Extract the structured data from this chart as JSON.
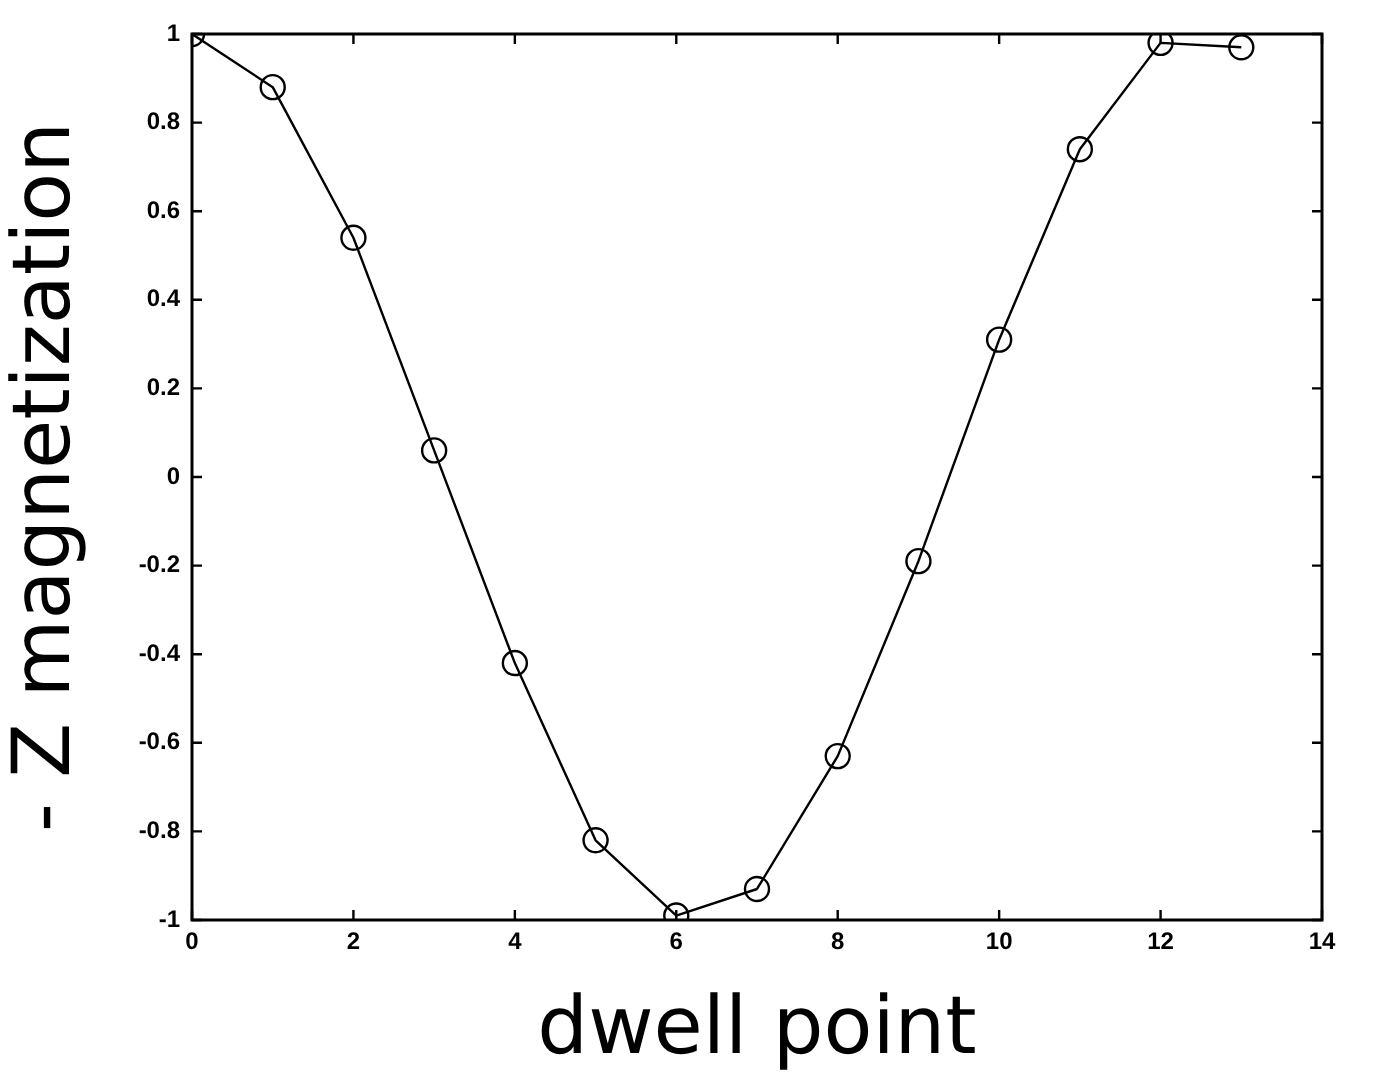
{
  "chart_data": {
    "type": "line",
    "xlabel": "dwell point",
    "ylabel": "- Z magnetization",
    "x": [
      0,
      1,
      2,
      3,
      4,
      5,
      6,
      7,
      8,
      9,
      10,
      11,
      12,
      13
    ],
    "series": [
      {
        "color": "#000000",
        "values": [
          1.0,
          0.88,
          0.54,
          0.06,
          -0.42,
          -0.82,
          -0.99,
          -0.93,
          -0.63,
          -0.19,
          0.31,
          0.74,
          0.98,
          0.97
        ]
      }
    ],
    "xlim": [
      0,
      14
    ],
    "xticks": [
      0,
      2,
      4,
      6,
      8,
      10,
      12,
      14
    ],
    "ylim": [
      -1,
      1
    ],
    "yticks": [
      -1,
      -0.8,
      -0.6,
      -0.4,
      -0.2,
      0,
      0.2,
      0.4,
      0.6,
      0.8,
      1
    ],
    "grid": false,
    "legend": false,
    "marker": "circle",
    "line_style": "solid"
  }
}
